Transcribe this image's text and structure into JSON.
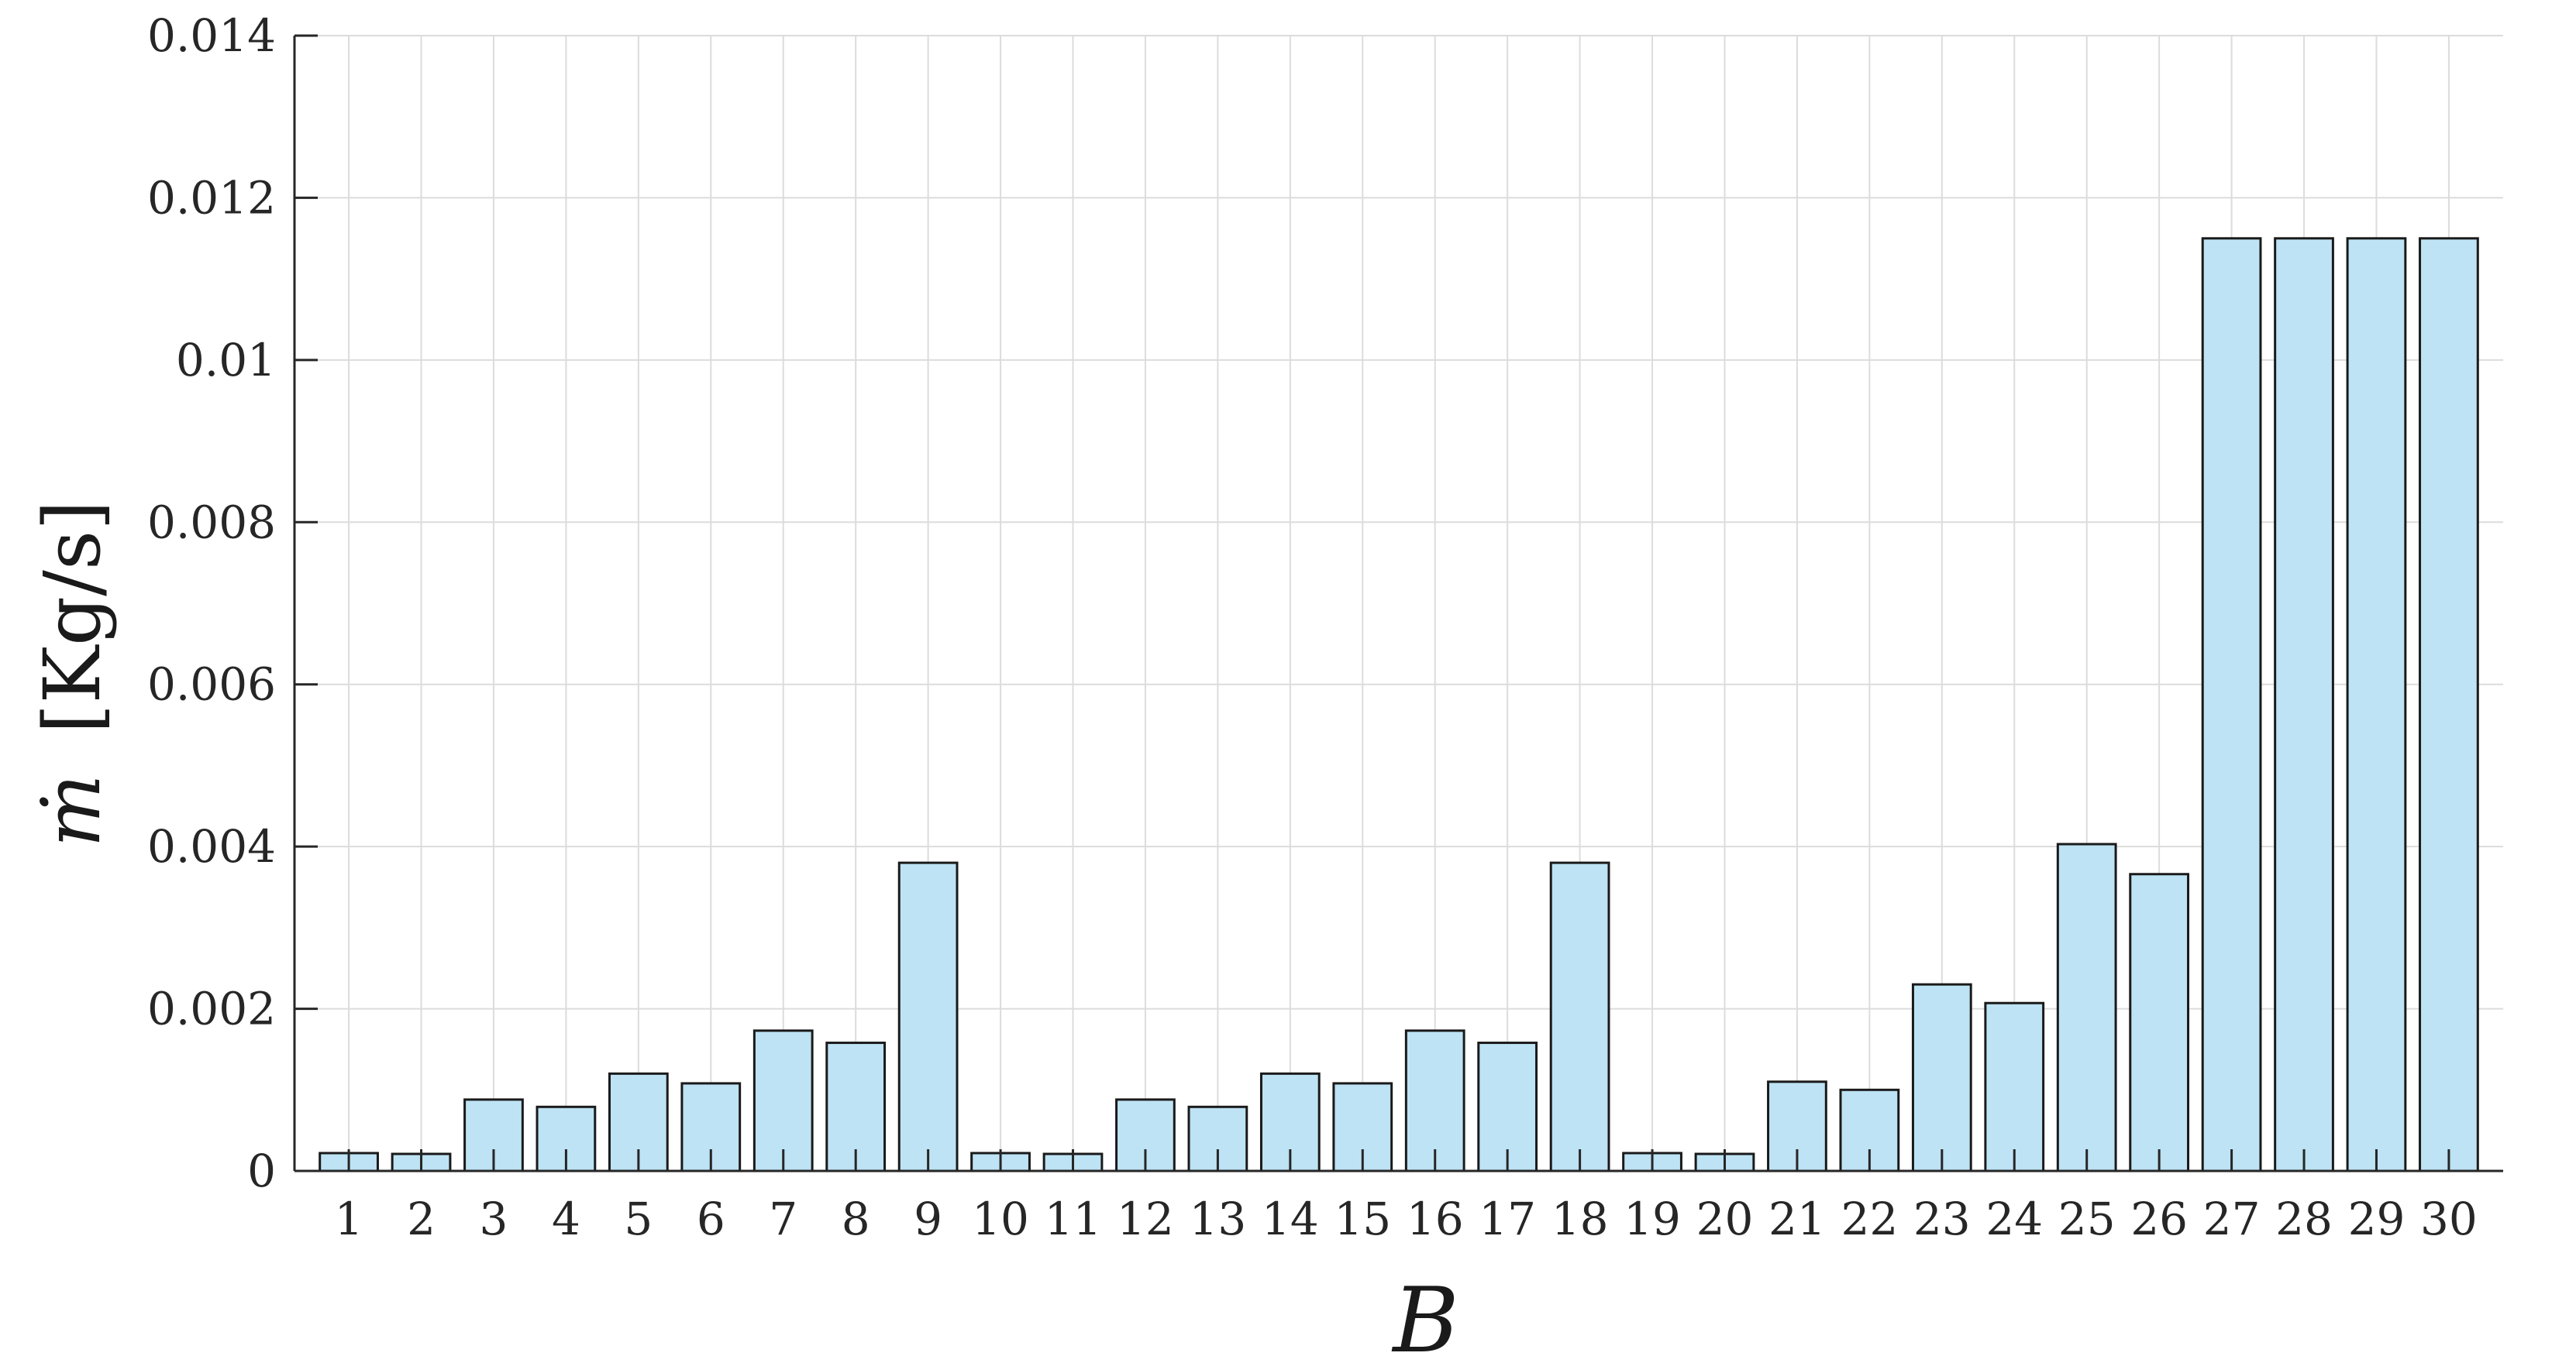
{
  "chart_data": {
    "type": "bar",
    "categories": [
      "1",
      "2",
      "3",
      "4",
      "5",
      "6",
      "7",
      "8",
      "9",
      "10",
      "11",
      "12",
      "13",
      "14",
      "15",
      "16",
      "17",
      "18",
      "19",
      "20",
      "21",
      "22",
      "23",
      "24",
      "25",
      "26",
      "27",
      "28",
      "29",
      "30"
    ],
    "values": [
      0.00022,
      0.00021,
      0.00088,
      0.00079,
      0.0012,
      0.00108,
      0.00173,
      0.00158,
      0.0038,
      0.00022,
      0.00021,
      0.00088,
      0.00079,
      0.0012,
      0.00108,
      0.00173,
      0.00158,
      0.0038,
      0.00022,
      0.00021,
      0.0011,
      0.001,
      0.0023,
      0.00207,
      0.00403,
      0.00366,
      0.0115,
      0.0115,
      0.0115,
      0.0115
    ],
    "xlabel": "B",
    "ylabel_symbol": "ṁ",
    "ylabel_unit": "[Kg/s]",
    "ylim": [
      0,
      0.014
    ],
    "yticks": [
      "0",
      "0.002",
      "0.004",
      "0.006",
      "0.008",
      "0.01",
      "0.012",
      "0.014"
    ],
    "grid": true,
    "colors": {
      "bar_fill": "#bde3f4",
      "bar_edge": "#1a1a1a"
    }
  }
}
